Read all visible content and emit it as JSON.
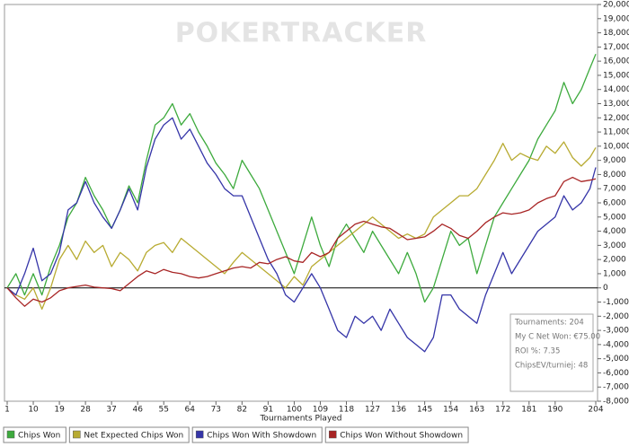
{
  "chart_data": {
    "type": "line",
    "watermark": "POKERTRACKER",
    "x_label": "Tournaments Played",
    "x": [
      1,
      4,
      7,
      10,
      13,
      16,
      19,
      22,
      25,
      28,
      31,
      34,
      37,
      40,
      43,
      46,
      49,
      52,
      55,
      58,
      61,
      64,
      67,
      70,
      73,
      76,
      79,
      82,
      85,
      88,
      91,
      94,
      97,
      100,
      103,
      106,
      109,
      112,
      115,
      118,
      121,
      124,
      127,
      130,
      133,
      136,
      139,
      142,
      145,
      148,
      151,
      154,
      157,
      160,
      163,
      166,
      169,
      172,
      175,
      178,
      181,
      184,
      187,
      190,
      193,
      196,
      199,
      202,
      204
    ],
    "xlim": [
      1,
      204
    ],
    "xticks": [
      1,
      10,
      19,
      28,
      37,
      46,
      55,
      64,
      73,
      82,
      91,
      100,
      109,
      118,
      127,
      136,
      145,
      154,
      163,
      172,
      181,
      190,
      204
    ],
    "ylim": [
      -8000,
      20000
    ],
    "yticks": [
      {
        "value": -8000,
        "label": "-8,000"
      },
      {
        "value": -7000,
        "label": "-7,000"
      },
      {
        "value": -6000,
        "label": "-6,000"
      },
      {
        "value": -5000,
        "label": "-5,000"
      },
      {
        "value": -4000,
        "label": "-4,000"
      },
      {
        "value": -3000,
        "label": "-3,000"
      },
      {
        "value": -2000,
        "label": "-2,000"
      },
      {
        "value": -1000,
        "label": "-1,000"
      },
      0,
      {
        "value": 1000,
        "label": "1,000"
      },
      {
        "value": 2000,
        "label": "2,000"
      },
      {
        "value": 3000,
        "label": "3,000"
      },
      {
        "value": 4000,
        "label": "4,000"
      },
      {
        "value": 5000,
        "label": "5,000"
      },
      {
        "value": 6000,
        "label": "6,000"
      },
      {
        "value": 7000,
        "label": "7,000"
      },
      {
        "value": 8000,
        "label": "8,000"
      },
      {
        "value": 9000,
        "label": "9,000"
      },
      {
        "value": 10000,
        "label": "10,000"
      },
      {
        "value": 11000,
        "label": "11,000"
      },
      {
        "value": 12000,
        "label": "12,000"
      },
      {
        "value": 13000,
        "label": "13,000"
      },
      {
        "value": 14000,
        "label": "14,000"
      },
      {
        "value": 15000,
        "label": "15,000"
      },
      {
        "value": 16000,
        "label": "16,000"
      },
      {
        "value": 17000,
        "label": "17,000"
      },
      {
        "value": 18000,
        "label": "18,000"
      },
      {
        "value": 19000,
        "label": "19,000"
      },
      {
        "value": 20000,
        "label": "20,000"
      }
    ],
    "y_axis_side": "right",
    "grid": false,
    "zero_line": true,
    "legend_position": "bottom",
    "stats_box": [
      "Tournaments: 204",
      "My C Net Won: €75.00",
      "ROI %: 7.35",
      "ChipsEV/turniej: 48"
    ],
    "series": [
      {
        "name": "Chips Won",
        "color": "#3daa3d",
        "values": [
          0,
          1000,
          -500,
          1000,
          -500,
          1500,
          3000,
          5000,
          6000,
          7800,
          6500,
          5500,
          4200,
          5500,
          7200,
          6000,
          9000,
          11500,
          12000,
          13000,
          11500,
          12300,
          11000,
          10000,
          8800,
          8000,
          7000,
          9000,
          8000,
          7000,
          5500,
          4000,
          2500,
          1000,
          3000,
          5000,
          3000,
          1500,
          3500,
          4500,
          3500,
          2500,
          4000,
          3000,
          2000,
          1000,
          2500,
          1000,
          -1000,
          0,
          2000,
          4000,
          3000,
          3500,
          1000,
          3000,
          5000,
          6000,
          7000,
          8000,
          9000,
          10500,
          11500,
          12500,
          14500,
          13000,
          14000,
          15500,
          16500
        ]
      },
      {
        "name": "Net Expected Chips Won",
        "color": "#b8ab32",
        "values": [
          0,
          -500,
          -800,
          0,
          -1500,
          0,
          2000,
          3000,
          2000,
          3300,
          2500,
          3000,
          1500,
          2500,
          2000,
          1200,
          2500,
          3000,
          3200,
          2500,
          3500,
          3000,
          2500,
          2000,
          1500,
          1000,
          1800,
          2500,
          2000,
          1500,
          1000,
          500,
          0,
          800,
          200,
          1500,
          2000,
          2500,
          3000,
          3500,
          4000,
          4500,
          5000,
          4500,
          4000,
          3500,
          3800,
          3500,
          3800,
          5000,
          5500,
          6000,
          6500,
          6500,
          7000,
          8000,
          9000,
          10200,
          9000,
          9500,
          9200,
          9000,
          10000,
          9500,
          10300,
          9200,
          8600,
          9200,
          9900
        ]
      },
      {
        "name": "Chips Won With Showdown",
        "color": "#3535a8",
        "values": [
          0,
          -500,
          1000,
          2800,
          500,
          1000,
          2500,
          5500,
          6000,
          7500,
          6000,
          5000,
          4200,
          5500,
          7000,
          5500,
          8500,
          10500,
          11500,
          12000,
          10500,
          11200,
          10000,
          8800,
          8000,
          7000,
          6500,
          6500,
          5000,
          3500,
          2000,
          1000,
          -500,
          -1000,
          0,
          1000,
          0,
          -1500,
          -3000,
          -3500,
          -2000,
          -2500,
          -2000,
          -3000,
          -1500,
          -2500,
          -3500,
          -4000,
          -4500,
          -3500,
          -500,
          -500,
          -1500,
          -2000,
          -2500,
          -500,
          1000,
          2500,
          1000,
          2000,
          3000,
          4000,
          4500,
          5000,
          6500,
          5500,
          6000,
          7000,
          8500
        ]
      },
      {
        "name": "Chips Won Without Showdown",
        "color": "#a82525",
        "values": [
          0,
          -700,
          -1300,
          -800,
          -1000,
          -700,
          -200,
          0,
          100,
          200,
          50,
          0,
          -50,
          -200,
          300,
          800,
          1200,
          1000,
          1300,
          1100,
          1000,
          800,
          700,
          800,
          1000,
          1200,
          1400,
          1500,
          1400,
          1800,
          1700,
          2000,
          2200,
          1900,
          1800,
          2500,
          2200,
          2500,
          3500,
          4000,
          4500,
          4700,
          4500,
          4300,
          4200,
          3800,
          3400,
          3500,
          3600,
          4000,
          4500,
          4200,
          3700,
          3500,
          4000,
          4600,
          5000,
          5300,
          5200,
          5300,
          5500,
          6000,
          6300,
          6500,
          7500,
          7800,
          7500,
          7600,
          7700
        ]
      }
    ]
  }
}
